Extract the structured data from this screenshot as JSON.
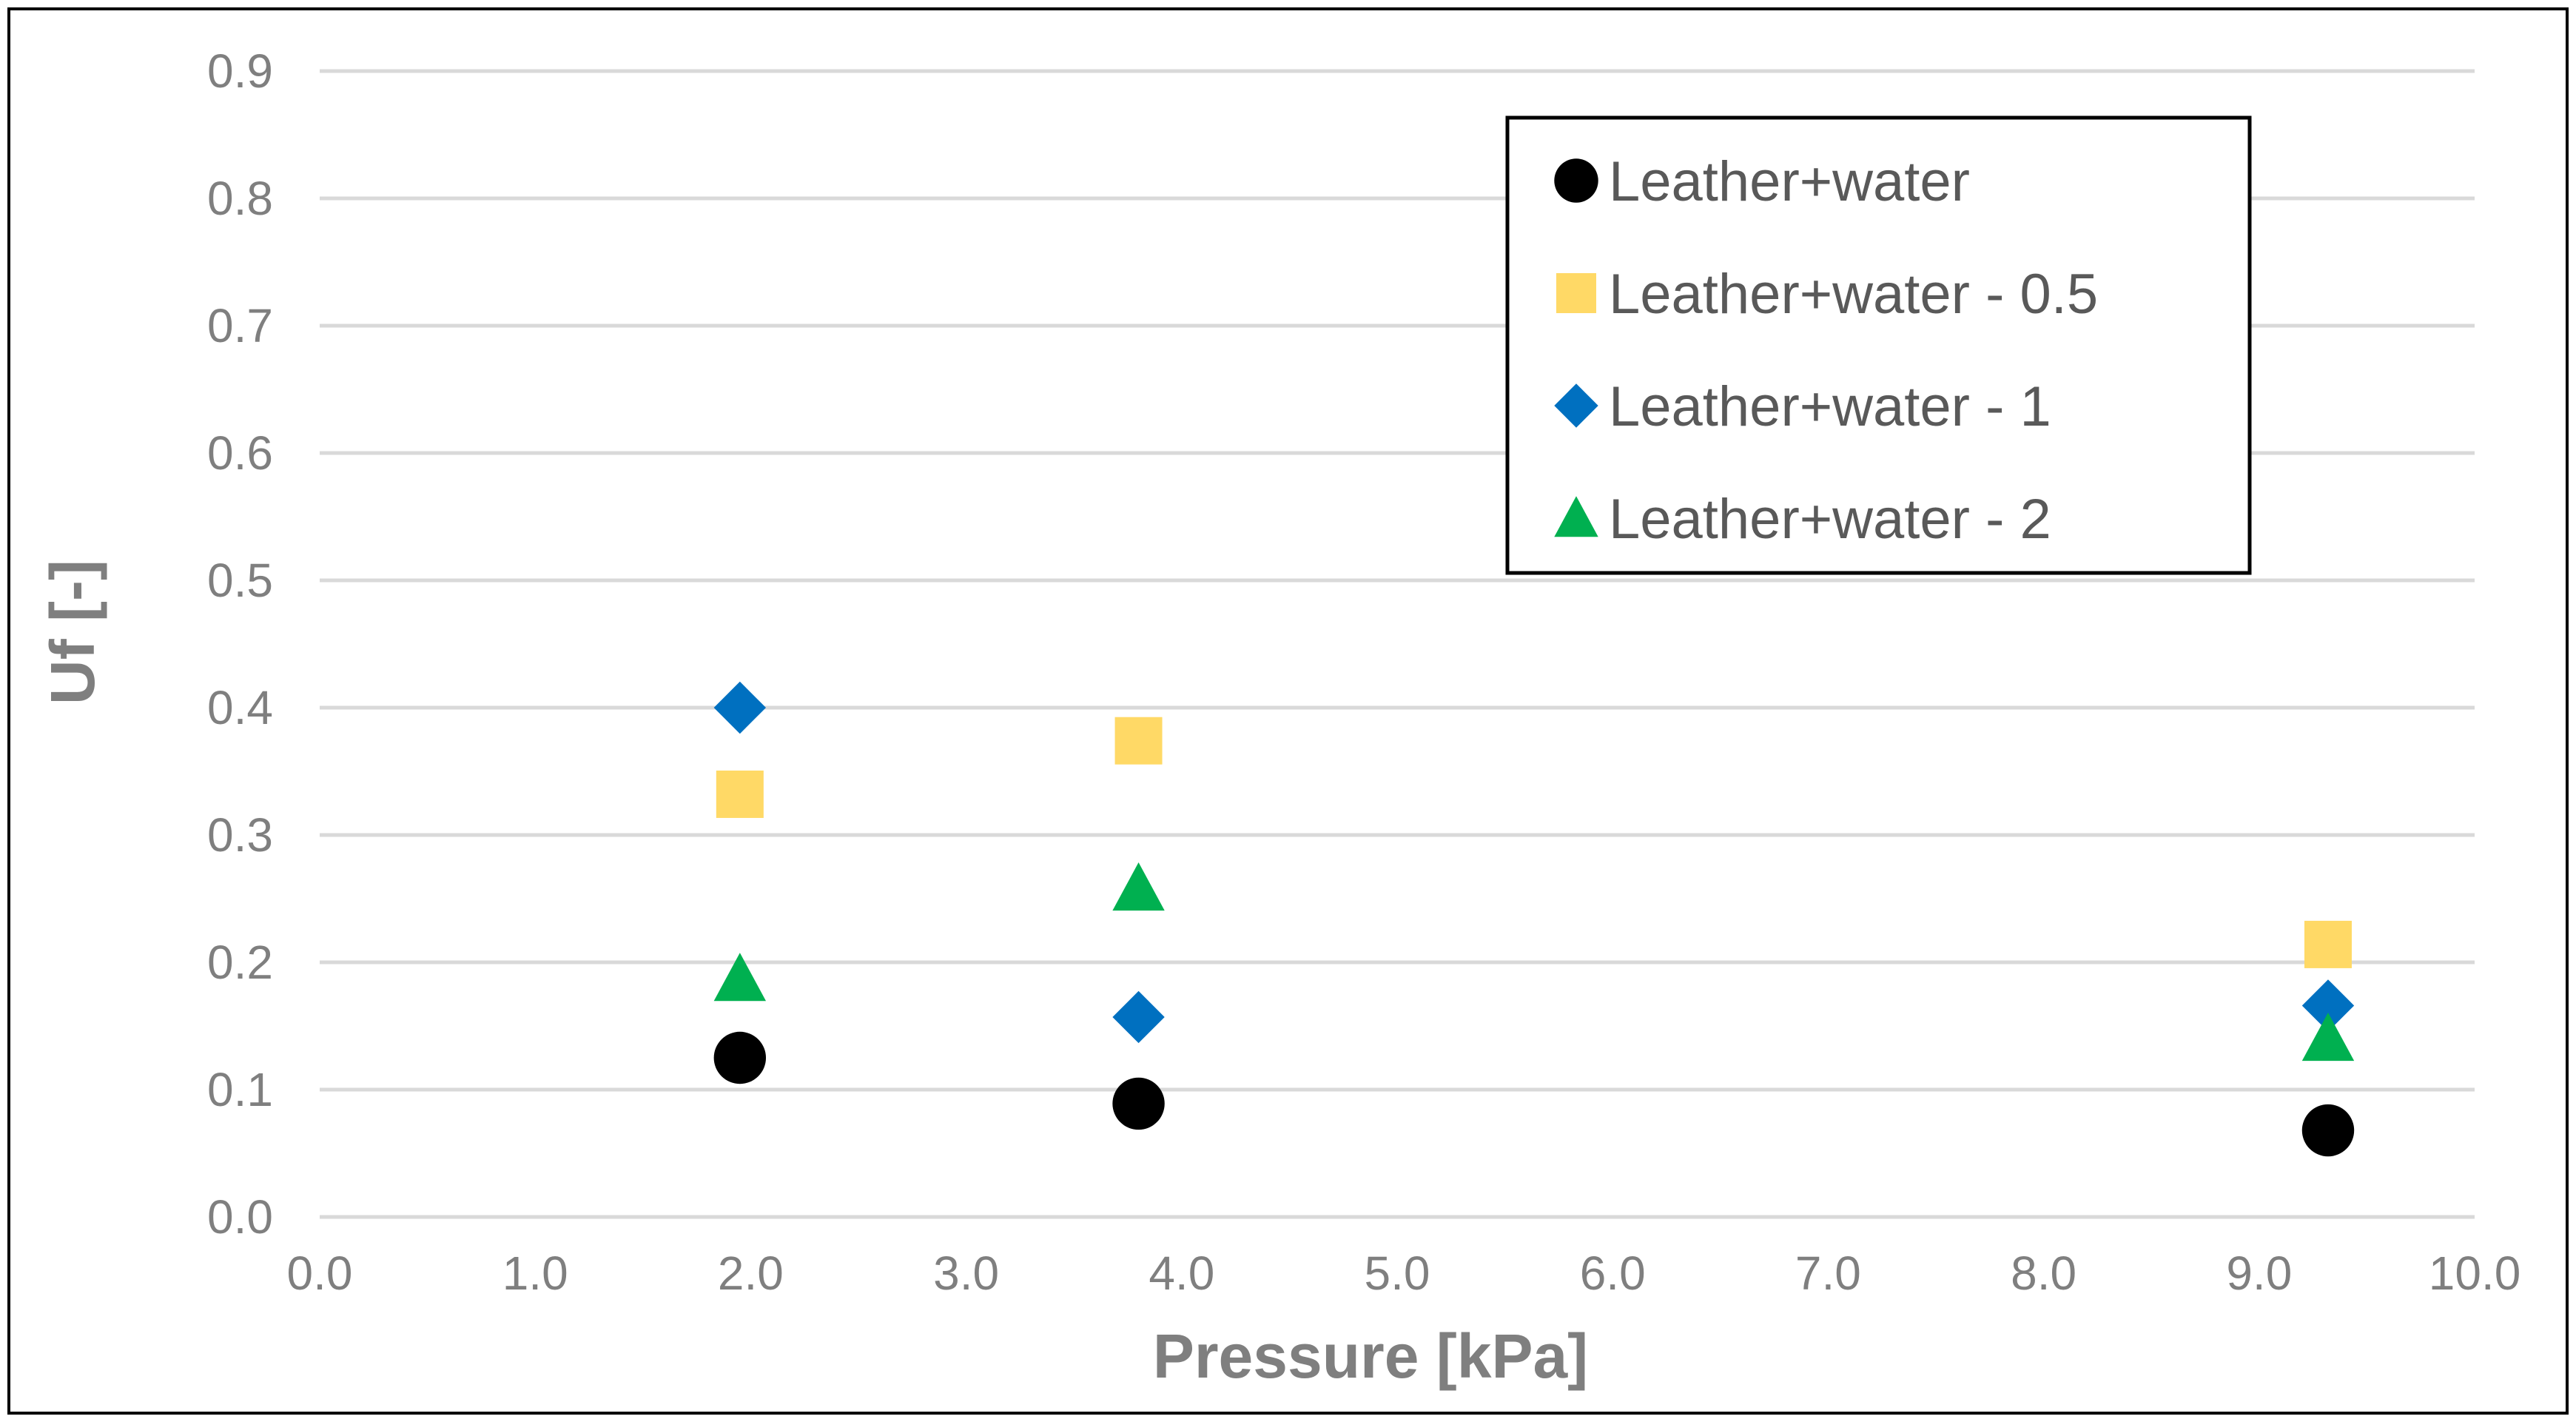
{
  "chart_data": {
    "type": "scatter",
    "title": "",
    "xlabel": "Pressure [kPa]",
    "ylabel": "Uf  [-]",
    "xlim": [
      0.0,
      10.0
    ],
    "ylim": [
      0.0,
      0.9
    ],
    "xticks": [
      "0.0",
      "1.0",
      "2.0",
      "3.0",
      "4.0",
      "5.0",
      "6.0",
      "7.0",
      "8.0",
      "9.0",
      "10.0"
    ],
    "yticks": [
      "0.0",
      "0.1",
      "0.2",
      "0.3",
      "0.4",
      "0.5",
      "0.6",
      "0.7",
      "0.8",
      "0.9"
    ],
    "grid": "horizontal",
    "legend_position": "top-right",
    "series": [
      {
        "name": "Leather+water",
        "marker": "circle",
        "color": "#000000",
        "x": [
          1.95,
          3.8,
          9.32
        ],
        "y": [
          0.125,
          0.089,
          0.068
        ]
      },
      {
        "name": "Leather+water - 0.5",
        "marker": "square",
        "color": "#FFD966",
        "x": [
          1.95,
          3.8,
          9.32
        ],
        "y": [
          0.332,
          0.374,
          0.214
        ]
      },
      {
        "name": "Leather+water - 1",
        "marker": "diamond",
        "color": "#0070C0",
        "x": [
          1.95,
          3.8,
          9.32
        ],
        "y": [
          0.4,
          0.157,
          0.166
        ]
      },
      {
        "name": "Leather+water - 2",
        "marker": "triangle",
        "color": "#00B050",
        "x": [
          1.95,
          3.8,
          9.32
        ],
        "y": [
          0.187,
          0.258,
          0.14
        ]
      }
    ]
  }
}
